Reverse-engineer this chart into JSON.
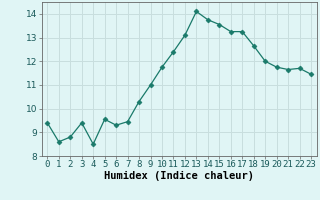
{
  "xlabel": "Humidex (Indice chaleur)",
  "x": [
    0,
    1,
    2,
    3,
    4,
    5,
    6,
    7,
    8,
    9,
    10,
    11,
    12,
    13,
    14,
    15,
    16,
    17,
    18,
    19,
    20,
    21,
    22,
    23
  ],
  "y": [
    9.4,
    8.6,
    8.8,
    9.4,
    8.5,
    9.55,
    9.3,
    9.45,
    10.3,
    11.0,
    11.75,
    12.4,
    13.1,
    14.1,
    13.75,
    13.55,
    13.25,
    13.25,
    12.65,
    12.0,
    11.75,
    11.65,
    11.7,
    11.45
  ],
  "ylim": [
    8,
    14.5
  ],
  "yticks": [
    8,
    9,
    10,
    11,
    12,
    13,
    14
  ],
  "line_color": "#1a7a6a",
  "marker": "D",
  "marker_size": 2.5,
  "bg_color": "#e0f5f5",
  "grid_color": "#c8dede",
  "xlabel_fontsize": 7.5,
  "tick_fontsize": 6.5
}
